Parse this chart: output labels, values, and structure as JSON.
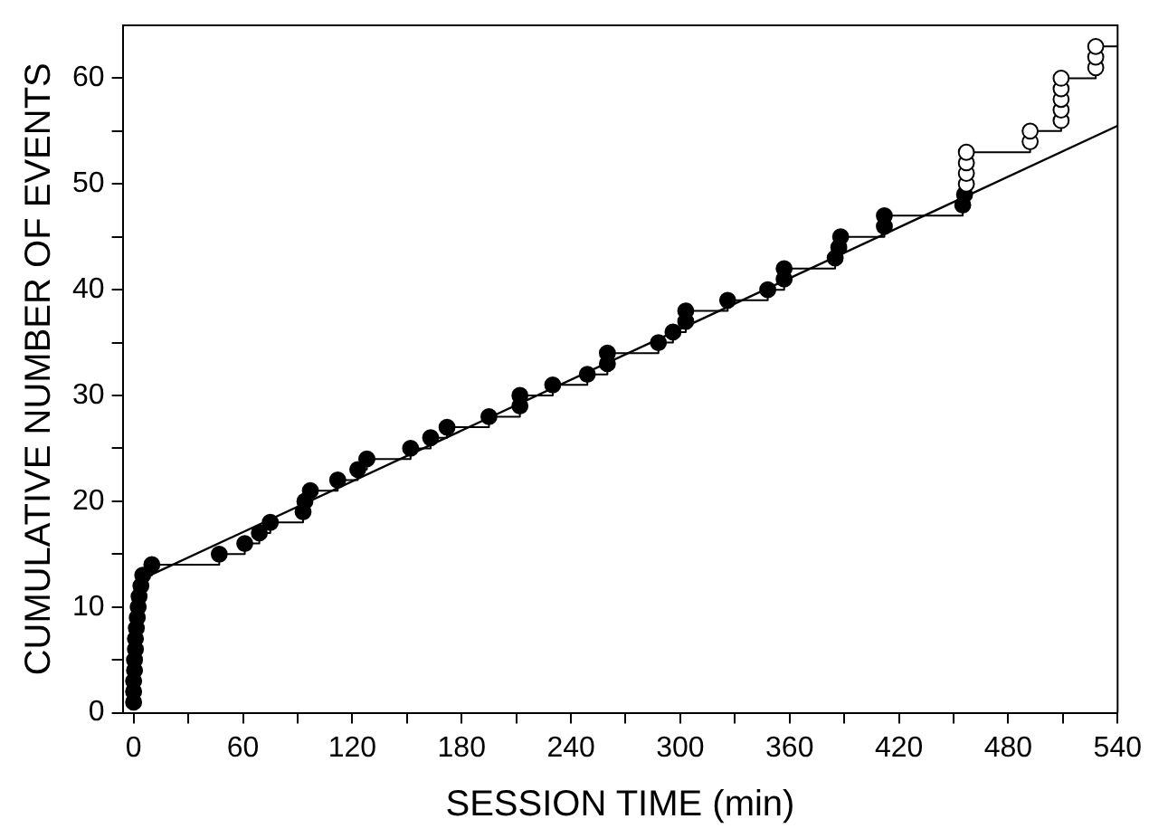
{
  "chart_data": {
    "type": "scatter",
    "xlabel": "SESSION TIME (min)",
    "ylabel": "CUMULATIVE NUMBER OF EVENTS",
    "xlim": [
      -6,
      540
    ],
    "ylim": [
      0,
      65
    ],
    "xticks": [
      0,
      {
        "value": 30,
        "label": null
      },
      60,
      {
        "value": 90,
        "label": null
      },
      120,
      {
        "value": 150,
        "label": null
      },
      180,
      {
        "value": 210,
        "label": null
      },
      240,
      {
        "value": 270,
        "label": null
      },
      300,
      {
        "value": 330,
        "label": null
      },
      360,
      {
        "value": 390,
        "label": null
      },
      420,
      {
        "value": 450,
        "label": null
      },
      480,
      {
        "value": 510,
        "label": null
      },
      540
    ],
    "yticks": [
      0,
      {
        "value": 5,
        "label": null
      },
      10,
      {
        "value": 15,
        "label": null
      },
      20,
      {
        "value": 25,
        "label": null
      },
      30,
      {
        "value": 35,
        "label": null
      },
      40,
      {
        "value": 45,
        "label": null
      },
      50,
      {
        "value": 55,
        "label": null
      },
      60
    ],
    "grid": false,
    "legend": false,
    "series": [
      {
        "type": "step",
        "color": "#000000",
        "marker": "none",
        "x": [
          0,
          0,
          0,
          0.5,
          0.5,
          1,
          1,
          1.5,
          2,
          2.5,
          3,
          4,
          5,
          10,
          47,
          61,
          69,
          75,
          93,
          94,
          97,
          112,
          123,
          128,
          152,
          163,
          172,
          195,
          212,
          212,
          230,
          249,
          260,
          260,
          288,
          296,
          303,
          303,
          326,
          348,
          357,
          357,
          385,
          387,
          388,
          412,
          412,
          455,
          456,
          457,
          457,
          457,
          457,
          492,
          492,
          509,
          509,
          509,
          509,
          509,
          528,
          528,
          528,
          540
        ],
        "values": [
          1,
          2,
          3,
          4,
          5,
          6,
          7,
          8,
          9,
          10,
          11,
          12,
          13,
          14,
          15,
          16,
          17,
          18,
          19,
          20,
          21,
          22,
          23,
          24,
          25,
          26,
          27,
          28,
          29,
          30,
          31,
          32,
          33,
          34,
          35,
          36,
          37,
          38,
          39,
          40,
          41,
          42,
          43,
          44,
          45,
          46,
          47,
          48,
          49,
          50,
          51,
          52,
          53,
          54,
          55,
          56,
          57,
          58,
          59,
          60,
          61,
          62,
          63,
          63
        ]
      },
      {
        "type": "scatter",
        "color": "#000000",
        "marker": "circle",
        "x": [
          0,
          0,
          0,
          0.5,
          0.5,
          1,
          1,
          1.5,
          2,
          2.5,
          3,
          4,
          5,
          10,
          47,
          61,
          69,
          75,
          93,
          94,
          97,
          112,
          123,
          128,
          152,
          163,
          172,
          195,
          212,
          212,
          230,
          249,
          260,
          260,
          288,
          296,
          303,
          303,
          326,
          348,
          357,
          357,
          385,
          387,
          388,
          412,
          412,
          455,
          456
        ],
        "values": [
          1,
          2,
          3,
          4,
          5,
          6,
          7,
          8,
          9,
          10,
          11,
          12,
          13,
          14,
          15,
          16,
          17,
          18,
          19,
          20,
          21,
          22,
          23,
          24,
          25,
          26,
          27,
          28,
          29,
          30,
          31,
          32,
          33,
          34,
          35,
          36,
          37,
          38,
          39,
          40,
          41,
          42,
          43,
          44,
          45,
          46,
          47,
          48,
          49
        ]
      },
      {
        "type": "scatter",
        "color": "#ffffff",
        "marker": "circle",
        "x": [
          457,
          457,
          457,
          457,
          492,
          492,
          509,
          509,
          509,
          509,
          509,
          528,
          528,
          528
        ],
        "values": [
          50,
          51,
          52,
          53,
          54,
          55,
          56,
          57,
          58,
          59,
          60,
          61,
          62,
          63
        ]
      },
      {
        "type": "line",
        "color": "#000000",
        "marker": "none",
        "x": [
          4,
          540
        ],
        "values": [
          12.6,
          55.5
        ]
      }
    ]
  }
}
